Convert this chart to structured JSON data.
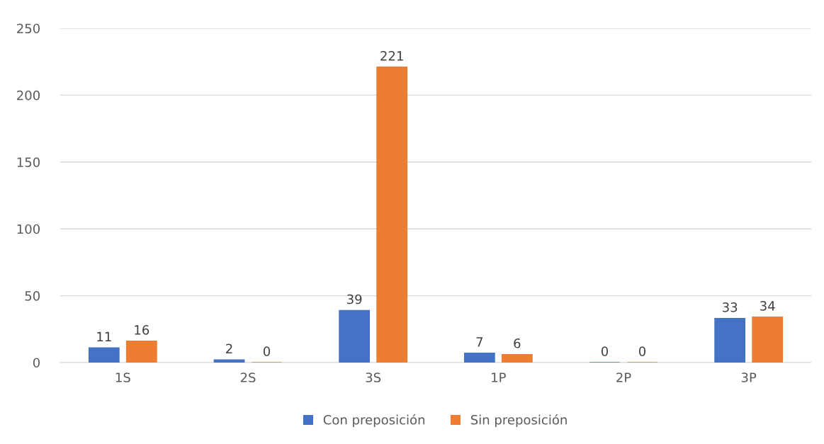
{
  "chart_data": {
    "type": "bar",
    "categories": [
      "1S",
      "2S",
      "3S",
      "1P",
      "2P",
      "3P"
    ],
    "series": [
      {
        "name": "Con preposición",
        "color": "#4472c4",
        "values": [
          11,
          2,
          39,
          7,
          0,
          33
        ]
      },
      {
        "name": "Sin preposición",
        "color": "#ed7d31",
        "values": [
          16,
          0,
          221,
          6,
          0,
          34
        ]
      }
    ],
    "ylim": [
      0,
      250
    ],
    "yticks": [
      0,
      50,
      100,
      150,
      200,
      250
    ],
    "grid": "y",
    "legend": "bottom",
    "data_labels": true
  }
}
